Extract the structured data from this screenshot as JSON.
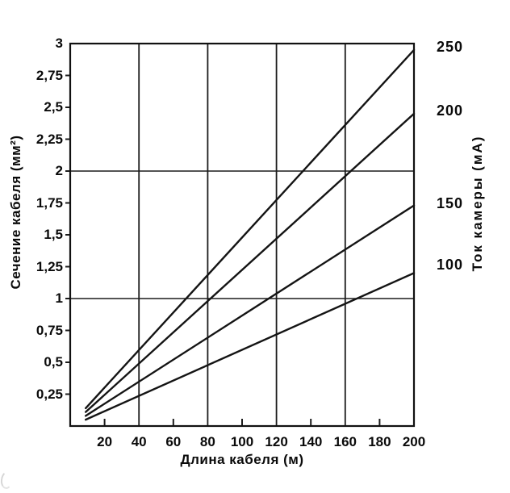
{
  "chart_data": {
    "type": "line",
    "title": "",
    "xlabel": "Длина кабеля (м)",
    "ylabel_left": "Сечение кабеля (мм²)",
    "ylabel_right": "Ток камеры (мА)",
    "xlim": [
      0,
      200
    ],
    "ylim": [
      0,
      3
    ],
    "grid": true,
    "x_ticks": [
      {
        "value": 20,
        "label": "20"
      },
      {
        "value": 40,
        "label": "40"
      },
      {
        "value": 60,
        "label": "60"
      },
      {
        "value": 80,
        "label": "80"
      },
      {
        "value": 100,
        "label": "100"
      },
      {
        "value": 120,
        "label": "120"
      },
      {
        "value": 140,
        "label": "140"
      },
      {
        "value": 160,
        "label": "160"
      },
      {
        "value": 180,
        "label": "180"
      },
      {
        "value": 200,
        "label": "200"
      }
    ],
    "x_gridlines": [
      40,
      80,
      120,
      160
    ],
    "x_minor_ticks": [
      20,
      60,
      100,
      140,
      180
    ],
    "y_ticks": [
      {
        "value": 3,
        "label": "3"
      },
      {
        "value": 2.75,
        "label": "2,75"
      },
      {
        "value": 2.5,
        "label": "2,5"
      },
      {
        "value": 2.25,
        "label": "2,25"
      },
      {
        "value": 2,
        "label": "2"
      },
      {
        "value": 1.75,
        "label": "1,75"
      },
      {
        "value": 1.5,
        "label": "1,5"
      },
      {
        "value": 1.25,
        "label": "1,25"
      },
      {
        "value": 1,
        "label": "1"
      },
      {
        "value": 0.75,
        "label": "0,75"
      },
      {
        "value": 0.5,
        "label": "0,5"
      },
      {
        "value": 0.25,
        "label": "0,25"
      }
    ],
    "y_gridlines": [
      1,
      2
    ],
    "legend_position": "right-line-end-labels",
    "series": [
      {
        "name": "250 мА",
        "end_label": "250",
        "end_label_y": 2.97,
        "x": [
          9,
          200
        ],
        "y": [
          0.14,
          2.95
        ]
      },
      {
        "name": "200 мА",
        "end_label": "200",
        "end_label_y": 2.47,
        "x": [
          9,
          200
        ],
        "y": [
          0.11,
          2.45
        ]
      },
      {
        "name": "150 мА",
        "end_label": "150",
        "end_label_y": 1.74,
        "x": [
          9,
          200
        ],
        "y": [
          0.08,
          1.73
        ]
      },
      {
        "name": "100 мА",
        "end_label": "100",
        "end_label_y": 1.26,
        "x": [
          9,
          200
        ],
        "y": [
          0.05,
          1.2
        ]
      }
    ],
    "line_color": "#141414",
    "grid_color": "#1c1c1c",
    "background": "#ffffff"
  }
}
